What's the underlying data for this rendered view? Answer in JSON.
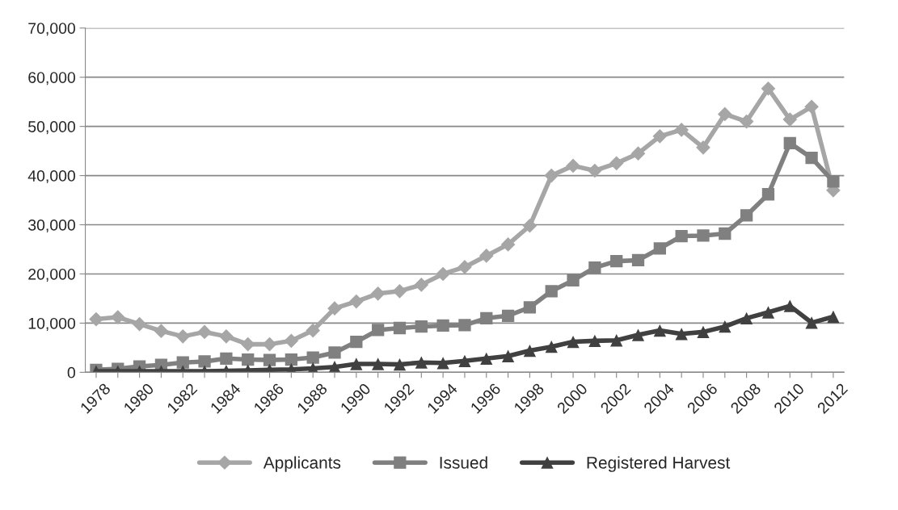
{
  "chart_data": {
    "type": "line",
    "categories": [
      "1978",
      null,
      "1980",
      null,
      "1982",
      null,
      "1984",
      null,
      "1986",
      null,
      "1988",
      null,
      "1990",
      null,
      "1992",
      null,
      "1994",
      null,
      "1996",
      null,
      "1998",
      null,
      "2000",
      null,
      "2002",
      null,
      "2004",
      null,
      "2006",
      null,
      "2008",
      null,
      "2010",
      null,
      "2012"
    ],
    "series": [
      {
        "name": "Applicants",
        "color": "#a6a6a6",
        "marker": "diamond",
        "values": [
          10800,
          11200,
          9800,
          8400,
          7300,
          8200,
          7300,
          5700,
          5700,
          6400,
          8500,
          13000,
          14400,
          16000,
          16500,
          17800,
          20000,
          21400,
          23700,
          26000,
          29800,
          40000,
          42000,
          41000,
          42500,
          44500,
          48000,
          49300,
          45700,
          52500,
          51000,
          57700,
          51400,
          54000,
          37000
        ]
      },
      {
        "name": "Issued",
        "color": "#808080",
        "marker": "square",
        "values": [
          500,
          700,
          1200,
          1500,
          2000,
          2200,
          2800,
          2600,
          2500,
          2600,
          3000,
          4000,
          6200,
          8600,
          9000,
          9300,
          9500,
          9600,
          11000,
          11500,
          13200,
          16500,
          18700,
          21300,
          22600,
          22800,
          25200,
          27700,
          27800,
          28200,
          31900,
          36200,
          46600,
          43600,
          38800
        ]
      },
      {
        "name": "Registered Harvest",
        "color": "#404040",
        "marker": "triangle",
        "values": [
          200,
          200,
          200,
          200,
          200,
          200,
          300,
          400,
          500,
          600,
          800,
          1100,
          1700,
          1700,
          1600,
          2000,
          1900,
          2300,
          2800,
          3300,
          4400,
          5200,
          6200,
          6400,
          6500,
          7600,
          8500,
          7800,
          8200,
          9300,
          11000,
          12200,
          13500,
          10100,
          11300
        ]
      }
    ],
    "ylim": [
      0,
      70000
    ],
    "yticks": [
      {
        "value": 0,
        "label": "0"
      },
      {
        "value": 10000,
        "label": "10,000"
      },
      {
        "value": 20000,
        "label": "20,000"
      },
      {
        "value": 30000,
        "label": "30,000"
      },
      {
        "value": 40000,
        "label": "40,000"
      },
      {
        "value": 50000,
        "label": "50,000"
      },
      {
        "value": 60000,
        "label": "60,000"
      },
      {
        "value": 70000,
        "label": "70,000"
      }
    ],
    "grid": "y",
    "legend": "bottom",
    "line_style": "solid"
  }
}
